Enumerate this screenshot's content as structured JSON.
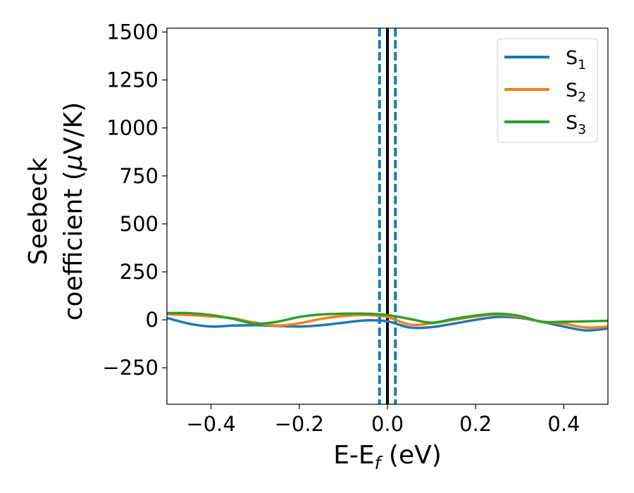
{
  "chart_data": {
    "type": "line",
    "xlabel": {
      "main": "E-E",
      "sub": "f",
      "tail": " (eV)"
    },
    "ylabel": {
      "line1": "Seebeck",
      "line2_pre": "coefficient  (",
      "mu": "μ",
      "line2_post": "V/K)"
    },
    "xlim": [
      -0.5,
      0.5
    ],
    "ylim": [
      -440,
      1520
    ],
    "xticks": [
      -0.4,
      -0.2,
      0.0,
      0.2,
      0.4
    ],
    "xtick_labels": [
      "−0.4",
      "−0.2",
      "0.0",
      "0.2",
      "0.4"
    ],
    "yticks": [
      -250,
      0,
      250,
      500,
      750,
      1000,
      1250,
      1500
    ],
    "ytick_labels": [
      "−250",
      "0",
      "250",
      "500",
      "750",
      "1000",
      "1250",
      "1500"
    ],
    "legend_position": "top-right",
    "grid": false,
    "vlines": [
      {
        "x": 0.0,
        "style": "solid",
        "color": "#000000"
      },
      {
        "x": -0.018,
        "style": "dashed",
        "color": "#1f77b4"
      },
      {
        "x": 0.018,
        "style": "dashed",
        "color": "#1f77b4"
      }
    ],
    "x": [
      -0.5,
      -0.45,
      -0.4,
      -0.35,
      -0.3,
      -0.25,
      -0.2,
      -0.15,
      -0.1,
      -0.05,
      0.0,
      0.05,
      0.1,
      0.15,
      0.2,
      0.25,
      0.3,
      0.35,
      0.4,
      0.45,
      0.5
    ],
    "series": [
      {
        "name_main": "S",
        "name_sub": "1",
        "color": "#1f77b4",
        "values": [
          10,
          -20,
          -35,
          -30,
          -28,
          -32,
          -35,
          -28,
          -15,
          -3,
          -8,
          -40,
          -38,
          -20,
          0,
          15,
          10,
          -10,
          -35,
          -55,
          -45
        ]
      },
      {
        "name_main": "S",
        "name_sub": "2",
        "color": "#ff7f0e",
        "values": [
          30,
          25,
          18,
          8,
          -15,
          -30,
          -18,
          5,
          20,
          25,
          15,
          -25,
          -18,
          0,
          18,
          28,
          15,
          -10,
          -20,
          -40,
          -35
        ]
      },
      {
        "name_main": "S",
        "name_sub": "3",
        "color": "#2ca02c",
        "values": [
          35,
          35,
          25,
          5,
          -20,
          -10,
          15,
          28,
          32,
          32,
          25,
          5,
          -15,
          5,
          22,
          32,
          20,
          -10,
          -10,
          -8,
          -5
        ]
      }
    ]
  }
}
